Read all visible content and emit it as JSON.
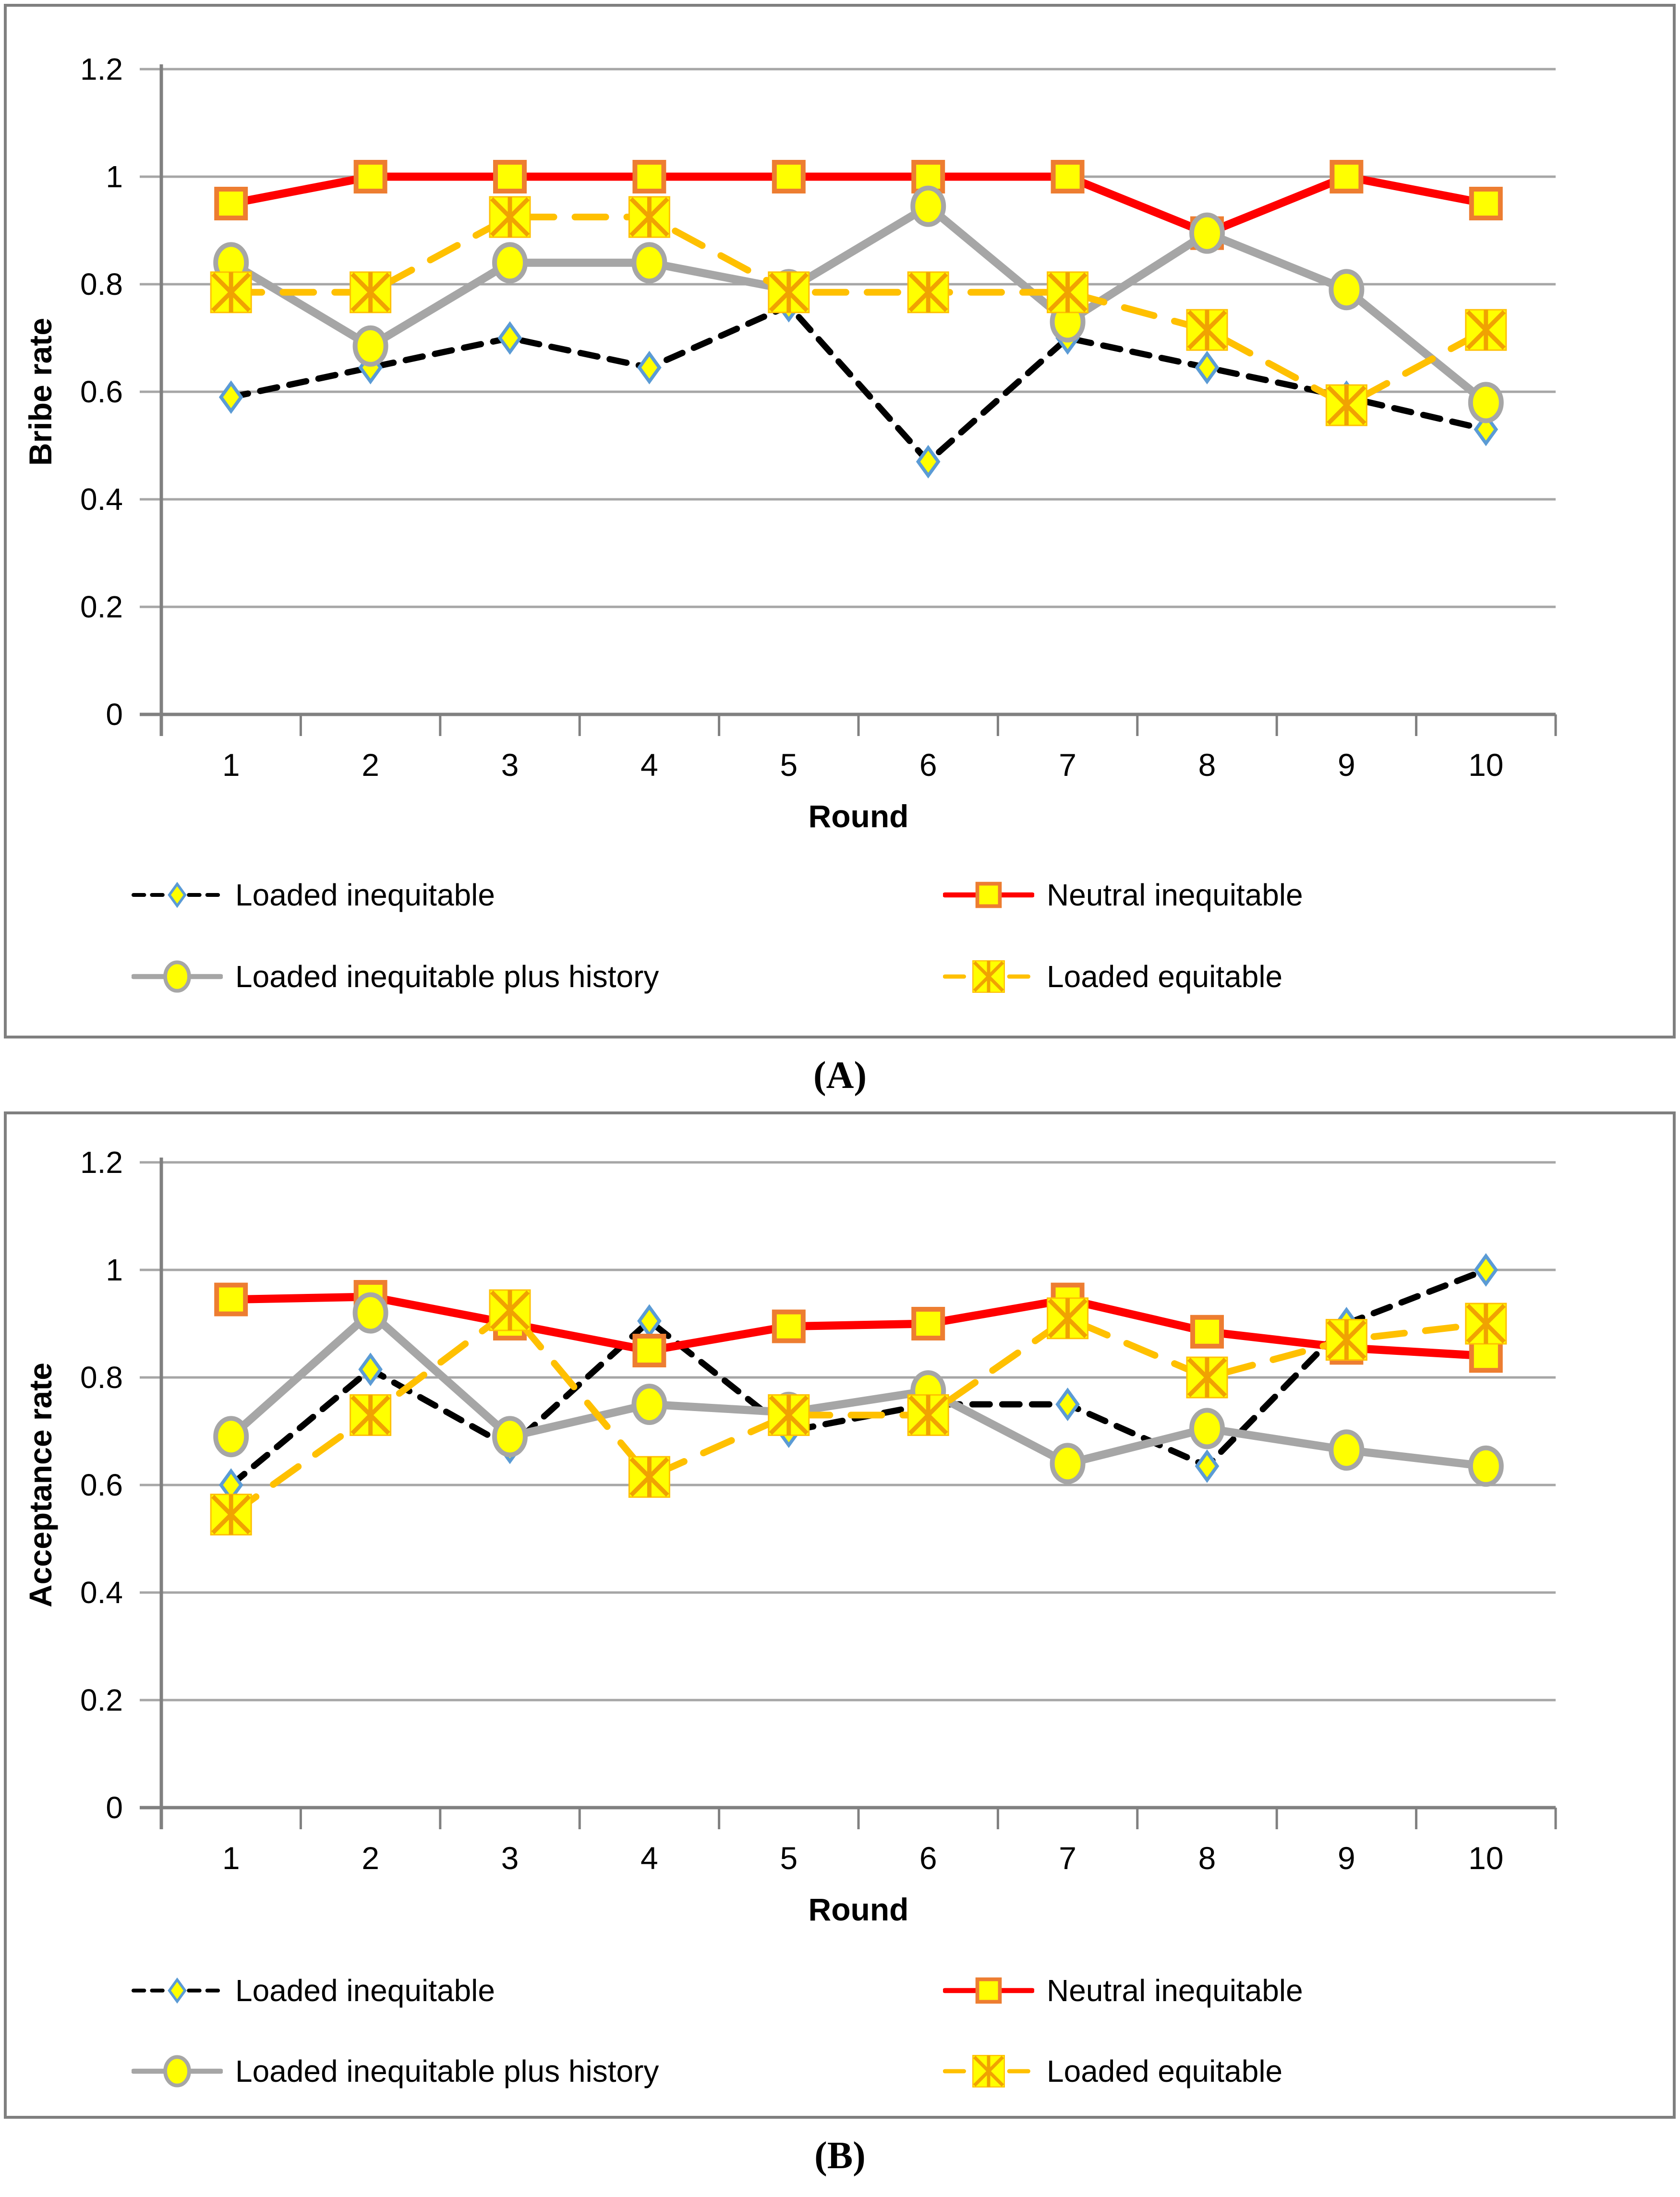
{
  "panels": [
    {
      "caption": "(A)"
    },
    {
      "caption": "(B)"
    }
  ],
  "colors": {
    "red": "#ff0000",
    "gray_line": "#a6a6a6",
    "orange_dash": "#ffc000",
    "black_dash": "#000000",
    "marker_fill_yellow": "#ffff00",
    "diamond_border_blue": "#5b9bd5",
    "square_border_orange": "#ed7d31",
    "x_lines_orange": "#f0a202",
    "gridline_gray": "#a6a6a6",
    "axis_gray": "#808080",
    "panel_border_gray": "#7f7f7f"
  },
  "chart_data": [
    {
      "type": "line",
      "title": "",
      "ylabel": "Bribe rate",
      "xlabel": "Round",
      "x": [
        1,
        2,
        3,
        4,
        5,
        6,
        7,
        8,
        9,
        10
      ],
      "ylim": [
        0,
        1.2
      ],
      "yticks": [
        0,
        0.2,
        0.4,
        0.6,
        0.8,
        1,
        1.2
      ],
      "ytick_labels": [
        "0",
        "0.2",
        "0.4",
        "0.6",
        "0.8",
        "1",
        "1.2"
      ],
      "grid": "horizontal",
      "legend_position": "bottom-two-columns",
      "series": [
        {
          "name": "Loaded inequitable",
          "marker": "diamond",
          "line": "dashed-black",
          "values": [
            0.59,
            0.645,
            0.7,
            0.645,
            0.76,
            0.47,
            0.7,
            0.645,
            0.59,
            0.53
          ]
        },
        {
          "name": "Neutral inequitable",
          "marker": "square",
          "line": "solid-red",
          "values": [
            0.95,
            1.0,
            1.0,
            1.0,
            1.0,
            1.0,
            1.0,
            0.895,
            1.0,
            0.95
          ]
        },
        {
          "name": "Loaded inequitable plus history",
          "marker": "circle",
          "line": "solid-gray",
          "values": [
            0.84,
            0.685,
            0.84,
            0.84,
            0.79,
            0.945,
            0.73,
            0.895,
            0.79,
            0.58
          ]
        },
        {
          "name": "Loaded equitable",
          "marker": "x-square",
          "line": "dashed-orange",
          "values": [
            0.785,
            0.785,
            0.925,
            0.925,
            0.785,
            0.785,
            0.785,
            0.715,
            0.575,
            0.715
          ]
        }
      ]
    },
    {
      "type": "line",
      "title": "",
      "ylabel": "Acceptance rate",
      "xlabel": "Round",
      "x": [
        1,
        2,
        3,
        4,
        5,
        6,
        7,
        8,
        9,
        10
      ],
      "ylim": [
        0,
        1.2
      ],
      "yticks": [
        0,
        0.2,
        0.4,
        0.6,
        0.8,
        1,
        1.2
      ],
      "ytick_labels": [
        "0",
        "0.2",
        "0.4",
        "0.6",
        "0.8",
        "1",
        "1.2"
      ],
      "grid": "horizontal",
      "legend_position": "bottom-two-columns",
      "series": [
        {
          "name": "Loaded inequitable",
          "marker": "diamond",
          "line": "dashed-black",
          "values": [
            0.6,
            0.815,
            0.67,
            0.905,
            0.7,
            0.75,
            0.75,
            0.635,
            0.9,
            1.0
          ]
        },
        {
          "name": "Neutral inequitable",
          "marker": "square",
          "line": "solid-red",
          "values": [
            0.945,
            0.95,
            0.9,
            0.85,
            0.895,
            0.9,
            0.945,
            0.885,
            0.855,
            0.84
          ]
        },
        {
          "name": "Loaded inequitable plus history",
          "marker": "circle",
          "line": "solid-gray",
          "values": [
            0.69,
            0.92,
            0.69,
            0.75,
            0.735,
            0.775,
            0.64,
            0.705,
            0.665,
            0.635
          ]
        },
        {
          "name": "Loaded equitable",
          "marker": "x-square",
          "line": "dashed-orange",
          "values": [
            0.545,
            0.73,
            0.925,
            0.615,
            0.73,
            0.73,
            0.91,
            0.8,
            0.87,
            0.9
          ]
        }
      ]
    }
  ]
}
